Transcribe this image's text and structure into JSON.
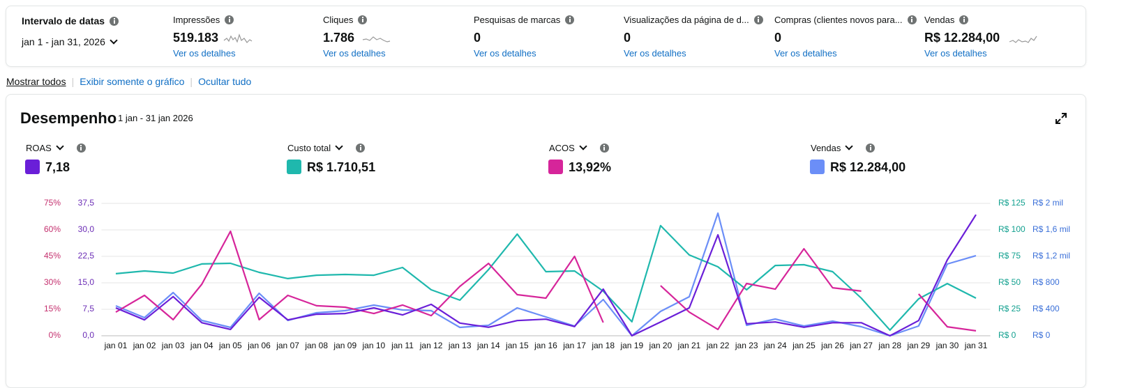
{
  "header": {
    "date_range": {
      "label": "Intervalo de datas",
      "value": "jan 1 - jan 31, 2026"
    },
    "metrics": [
      {
        "label": "Impressões",
        "value": "519.183",
        "link": "Ver os detalhes"
      },
      {
        "label": "Cliques",
        "value": "1.786",
        "link": "Ver os detalhes"
      },
      {
        "label": "Pesquisas de marcas",
        "value": "0",
        "link": "Ver os detalhes"
      },
      {
        "label": "Visualizações da página de d...",
        "value": "0",
        "link": "Ver os detalhes"
      },
      {
        "label": "Compras (clientes novos para...",
        "value": "0",
        "link": "Ver os detalhes"
      },
      {
        "label": "Vendas",
        "value": "R$ 12.284,00",
        "link": "Ver os detalhes"
      }
    ]
  },
  "view_links": [
    "Mostrar todos",
    "Exibir somente o gráfico",
    "Ocultar tudo"
  ],
  "chart_data": {
    "type": "line",
    "title": "Desempenho",
    "subtitle": "1 jan - 31 jan 2026",
    "grid": true,
    "categories": [
      "jan 01",
      "jan 02",
      "jan 03",
      "jan 04",
      "jan 05",
      "jan 06",
      "jan 07",
      "jan 08",
      "jan 09",
      "jan 10",
      "jan 11",
      "jan 12",
      "jan 13",
      "jan 14",
      "jan 15",
      "jan 16",
      "jan 17",
      "jan 18",
      "jan 19",
      "jan 20",
      "jan 21",
      "jan 22",
      "jan 23",
      "jan 24",
      "jan 25",
      "jan 26",
      "jan 27",
      "jan 28",
      "jan 29",
      "jan 30",
      "jan 31"
    ],
    "ylim": [
      0,
      37.5
    ],
    "yticks": [
      {
        "value": 0,
        "label": "0,0"
      },
      {
        "value": 7.5,
        "label": "7,5"
      },
      {
        "value": 15,
        "label": "15,0"
      },
      {
        "value": 22.5,
        "label": "22,5"
      },
      {
        "value": 30,
        "label": "30,0"
      },
      {
        "value": 37.5,
        "label": "37,5"
      }
    ],
    "y2lim": [
      0,
      75
    ],
    "y2ticks": [
      {
        "value": 0,
        "label": "0%"
      },
      {
        "value": 15,
        "label": "15%"
      },
      {
        "value": 30,
        "label": "30%"
      },
      {
        "value": 45,
        "label": "45%"
      },
      {
        "value": 60,
        "label": "60%"
      },
      {
        "value": 75,
        "label": "75%"
      }
    ],
    "y3lim": [
      0,
      125
    ],
    "y3ticks": [
      {
        "value": 0,
        "label": "R$ 0"
      },
      {
        "value": 25,
        "label": "R$ 25"
      },
      {
        "value": 50,
        "label": "R$ 50"
      },
      {
        "value": 75,
        "label": "R$ 75"
      },
      {
        "value": 100,
        "label": "R$ 100"
      },
      {
        "value": 125,
        "label": "R$ 125"
      }
    ],
    "y4lim": [
      0,
      2000
    ],
    "y4ticks": [
      {
        "value": 0,
        "label": "R$ 0"
      },
      {
        "value": 400,
        "label": "R$ 400"
      },
      {
        "value": 800,
        "label": "R$ 800"
      },
      {
        "value": 1200,
        "label": "R$ 1,2 mil"
      },
      {
        "value": 1600,
        "label": "R$ 1,6 mil"
      },
      {
        "value": 2000,
        "label": "R$ 2 mil"
      }
    ],
    "series": [
      {
        "name": "Vendas",
        "summary": "R$ 12.284,00",
        "color": "#6b8ef7",
        "axis": "y4",
        "values": [
          453,
          274,
          653,
          232,
          126,
          642,
          232,
          347,
          379,
          463,
          389,
          379,
          126,
          158,
          421,
          284,
          147,
          547,
          0,
          368,
          589,
          1853,
          158,
          253,
          147,
          221,
          137,
          0,
          147,
          1084,
          1211
        ]
      },
      {
        "name": "Custo total",
        "summary": "R$ 1.710,51",
        "color": "#1fb8ad",
        "axis": "y3",
        "values": [
          58.6,
          61.2,
          59.2,
          67.8,
          68.4,
          59.9,
          54,
          57.2,
          57.9,
          57.2,
          64.5,
          43.4,
          33.6,
          62.5,
          96,
          60.5,
          61.2,
          42.1,
          13.2,
          104,
          76.3,
          65.1,
          43.4,
          66.4,
          67.1,
          60.5,
          35.5,
          5.3,
          34.9,
          49.3,
          35.5
        ]
      },
      {
        "name": "ACOS",
        "summary": "13,92%",
        "color": "#d6259a",
        "axis": "y2",
        "values": [
          13.4,
          22.9,
          9.1,
          29.2,
          59.2,
          9.1,
          22.9,
          17,
          16.2,
          12.6,
          17.4,
          11.4,
          28,
          41,
          23.3,
          21.3,
          45,
          7.5,
          null,
          28.4,
          13.4,
          3.6,
          29.6,
          26.4,
          49.3,
          27.2,
          25.3,
          null,
          23.7,
          5.1,
          2.8
        ]
      },
      {
        "name": "ROAS",
        "summary": "7,18",
        "color": "#6a1fd8",
        "axis": "y",
        "values": [
          7.9,
          4.5,
          11.1,
          3.7,
          1.8,
          10.9,
          4.5,
          6.1,
          6.3,
          7.9,
          5.9,
          8.9,
          3.6,
          2.4,
          4.3,
          4.7,
          2.6,
          13.2,
          0,
          3.9,
          7.9,
          28.6,
          3.4,
          3.9,
          2.4,
          3.7,
          3.7,
          0,
          4.3,
          21.5,
          34.3
        ]
      }
    ]
  }
}
